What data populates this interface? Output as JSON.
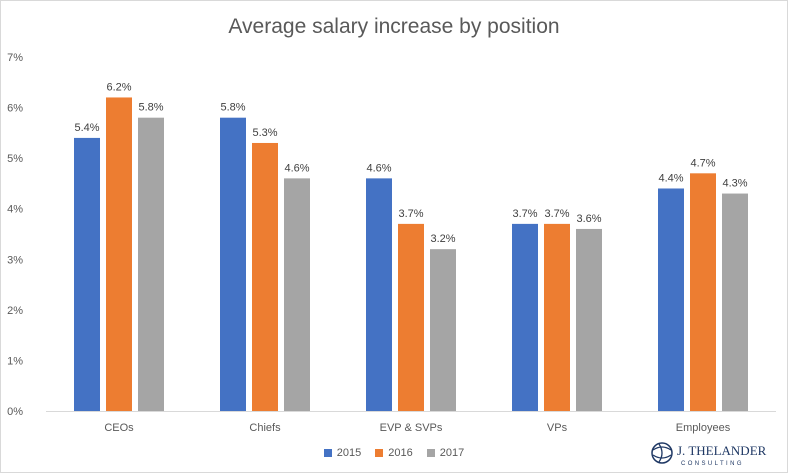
{
  "chart_data": {
    "type": "bar",
    "title": "Average salary increase by position",
    "xlabel": "",
    "ylabel": "",
    "categories": [
      "CEOs",
      "Chiefs",
      "EVP & SVPs",
      "VPs",
      "Employees"
    ],
    "series": [
      {
        "name": "2015",
        "color": "#4472C4",
        "values": [
          5.4,
          5.8,
          4.6,
          3.7,
          4.4
        ]
      },
      {
        "name": "2016",
        "color": "#ED7D31",
        "values": [
          6.2,
          5.3,
          3.7,
          3.7,
          4.7
        ]
      },
      {
        "name": "2017",
        "color": "#A5A5A5",
        "values": [
          5.8,
          4.6,
          3.2,
          3.6,
          4.3
        ]
      }
    ],
    "ylim": [
      0,
      7
    ],
    "yticks": [
      "0%",
      "1%",
      "2%",
      "3%",
      "4%",
      "5%",
      "6%",
      "7%"
    ],
    "value_suffix": "%",
    "grid": false,
    "legend": "bottom"
  },
  "logo": {
    "name": "J. THELANDER",
    "sub": "CONSULTING",
    "color": "#1f3864"
  }
}
